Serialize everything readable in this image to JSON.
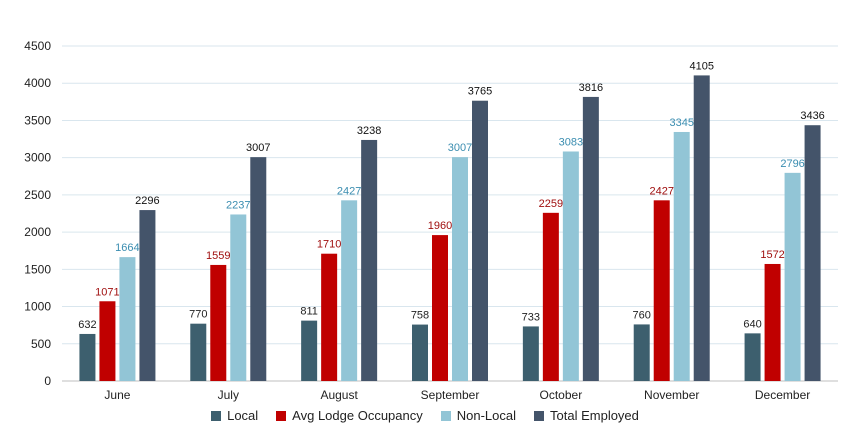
{
  "chart_data": {
    "type": "bar",
    "categories": [
      "June",
      "July",
      "August",
      "September",
      "October",
      "November",
      "December"
    ],
    "ylim": [
      0,
      4500
    ],
    "yticks": [
      0,
      500,
      1000,
      1500,
      2000,
      2500,
      3000,
      3500,
      4000,
      4500
    ],
    "grid": true,
    "legend_position": "bottom",
    "series": [
      {
        "name": "Local",
        "color": "#3d5f6e",
        "label_color": "#222222",
        "values": [
          632,
          770,
          811,
          758,
          733,
          760,
          640
        ]
      },
      {
        "name": "Avg Lodge Occupancy",
        "color": "#c00000",
        "label_color": "#a01010",
        "values": [
          1071,
          1559,
          1710,
          1960,
          2259,
          2427,
          1572
        ]
      },
      {
        "name": "Non-Local",
        "color": "#92c5d6",
        "label_color": "#3a8db0",
        "values": [
          1664,
          2237,
          2427,
          3007,
          3083,
          3345,
          2796
        ]
      },
      {
        "name": "Total Employed",
        "color": "#44546a",
        "label_color": "#111111",
        "values": [
          2296,
          3007,
          3238,
          3765,
          3816,
          4105,
          3436
        ]
      }
    ]
  }
}
